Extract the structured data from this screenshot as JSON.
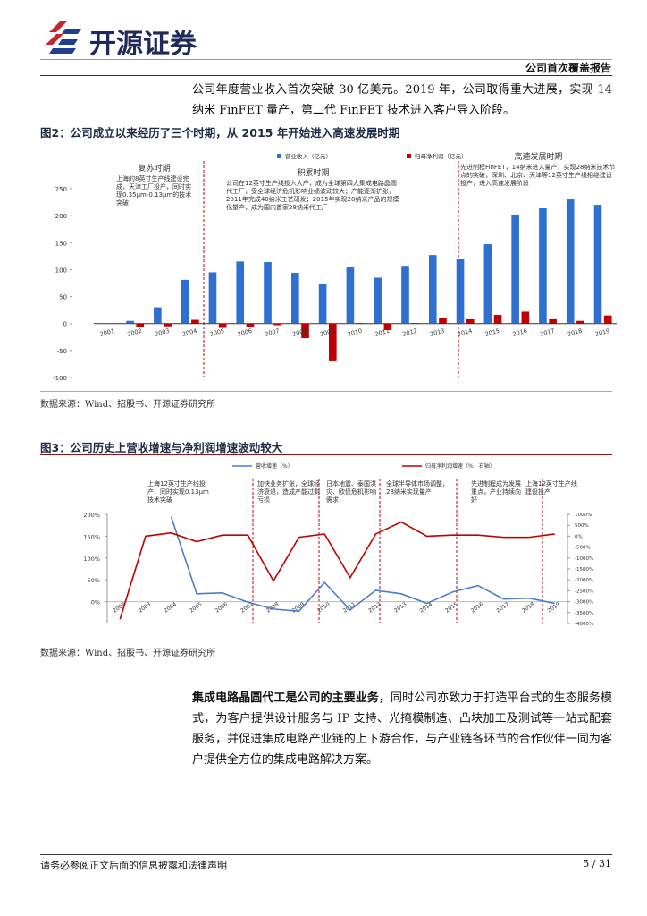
{
  "header": {
    "logo_text": "开源证券",
    "report_type": "公司首次覆盖报告"
  },
  "intro": "公司年度营业收入首次突破 30 亿美元。2019 年，公司取得重大进展，实现 14 纳米 FinFET 量产，第二代 FinFET 技术进入客户导入阶段。",
  "figures": [
    {
      "title": "图2：公司成立以来经历了三个时期，从 2015 年开始进入高速发展时期",
      "source": "数据来源：Wind、招股书、开源证券研究所"
    },
    {
      "title": "图3：公司历史上营收增速与净利润增速波动较大",
      "source": "数据来源：Wind、招股书、开源证券研究所"
    }
  ],
  "chart_data": [
    {
      "type": "bar",
      "categories": [
        "2001",
        "2002",
        "2003",
        "2004",
        "2005",
        "2006",
        "2007",
        "2008",
        "2009",
        "2010",
        "2011",
        "2012",
        "2013",
        "2014",
        "2015",
        "2016",
        "2017",
        "2018",
        "2019"
      ],
      "series": [
        {
          "name": "营业收入（亿元）",
          "color": "#2f6fd0",
          "values": [
            0,
            5,
            30,
            81,
            95,
            115,
            114,
            94,
            73,
            104,
            85,
            107,
            127,
            120,
            147,
            202,
            214,
            230,
            220
          ]
        },
        {
          "name": "归母净利润（亿元）",
          "color": "#c00000",
          "values": [
            0,
            -7,
            -5,
            7,
            -8,
            -7,
            -3,
            -27,
            -70,
            1,
            -12,
            1,
            10,
            8,
            16,
            22,
            8,
            5,
            15
          ]
        }
      ],
      "ylim": [
        -100,
        250
      ],
      "yticks": [
        -100,
        -50,
        0,
        50,
        100,
        150,
        200,
        250
      ],
      "annotations": [
        {
          "title": "复苏时期",
          "text": "上海的8英寸生产线建设完成，天津工厂投产，同时实现0.35μm-0.13μm的技术突破"
        },
        {
          "title": "积累时期",
          "text": "公司在12英寸生产线投入大产，成为全球第四大集成电路晶圆代工厂，受全球经济危机影响业绩波动较大；产能逐渐扩张，2011年完成40纳米工艺研发；2015年实现28纳米产品的规模化量产，成为国内首家28纳米代工厂"
        },
        {
          "title": "高速发展时期",
          "text": "先进制程FinFET，14纳米进入量产，实现28纳米技术节点的突破，深圳、北京、天津等12英寸生产线相继建设投产，进入高速发展阶段"
        }
      ]
    },
    {
      "type": "line",
      "categories": [
        "2002",
        "2003",
        "2004",
        "2005",
        "2006",
        "2007",
        "2008",
        "2009",
        "2010",
        "2011",
        "2012",
        "2013",
        "2014",
        "2015",
        "2016",
        "2017",
        "2018",
        "2019"
      ],
      "series": [
        {
          "name": "营收增速（%）",
          "color": "#4a7ec8",
          "values": [
            null,
            null,
            195,
            18,
            20,
            -1,
            -17,
            -22,
            44,
            -19,
            26,
            18,
            -4,
            22,
            37,
            6,
            8,
            -4
          ]
        },
        {
          "name": "归母净利润增速（%，右轴）",
          "color": "#c00000",
          "axis": "y2",
          "values": [
            -3800,
            0,
            150,
            -250,
            50,
            50,
            -2050,
            -50,
            100,
            -1900,
            100,
            650,
            0,
            50,
            50,
            -50,
            -50,
            100
          ]
        }
      ],
      "ylim": [
        -50,
        200
      ],
      "yticks": [
        {
          "value": 0,
          "label": "0%"
        },
        {
          "value": 50,
          "label": "50%"
        },
        {
          "value": 100,
          "label": "100%"
        },
        {
          "value": 150,
          "label": "150%"
        },
        {
          "value": 200,
          "label": "200%"
        }
      ],
      "y2lim": [
        -4000,
        1000
      ],
      "y2ticks": [
        {
          "value": -4000,
          "label": "-4000%"
        },
        {
          "value": -3500,
          "label": "-3500%"
        },
        {
          "value": -3000,
          "label": "-3000%"
        },
        {
          "value": -2500,
          "label": "-2500%"
        },
        {
          "value": -2000,
          "label": "-2000%"
        },
        {
          "value": -1500,
          "label": "-1500%"
        },
        {
          "value": -1000,
          "label": "-1000%"
        },
        {
          "value": -500,
          "label": "-500%"
        },
        {
          "value": 0,
          "label": "0%"
        },
        {
          "value": 500,
          "label": "500%"
        },
        {
          "value": 1000,
          "label": "1000%"
        }
      ],
      "annotations": [
        {
          "text": "上海12英寸生产线投产，同时实现0.13μm技术突破"
        },
        {
          "text": "加快业务扩张，全球经济衰退，造成产能过剩亏损"
        },
        {
          "text": "日本地震、泰国洪灾、欧债危机影响需求"
        },
        {
          "text": "全球半导体市场调整，28纳米实现量产"
        },
        {
          "text": "先进制程成为发展重点，产业持续向好"
        },
        {
          "text": "上海12英寸生产线建设投产"
        }
      ]
    }
  ],
  "body": {
    "bold": "集成电路晶圆代工是公司的主要业务，",
    "text": "同时公司亦致力于打造平台式的生态服务模式，为客户提供设计服务与 IP 支持、光掩模制造、凸块加工及测试等一站式配套服务，并促进集成电路产业链的上下游合作，与产业链各环节的合作伙伴一同为客户提供全方位的集成电路解决方案。"
  },
  "footer": {
    "disclaimer": "请务必参阅正文后面的信息披露和法律声明",
    "page": "5 / 31"
  }
}
